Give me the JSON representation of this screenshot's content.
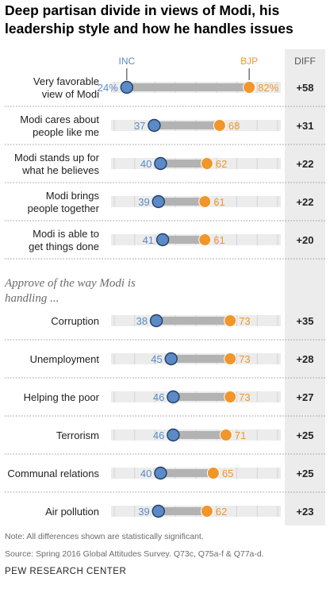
{
  "title": "Deep partisan divide in views of Modi, his leadership style and how he handles issues",
  "section_label": "Approve of the way Modi is handling ...",
  "diff_header": "DIFF",
  "note": "Note: All differences shown are statistically significant.",
  "source": "Source: Spring 2016 Global Attitudes Survey. Q73c, Q75a-f & Q77a-d.",
  "organization": "PEW RESEARCH CENTER",
  "colors": {
    "inc": "#5b8ac6",
    "bjp": "#f0962a",
    "bar": "#b3b3b3",
    "diff_bg": "#ececec",
    "track": "#ececec"
  },
  "chart_data": {
    "type": "dot-plot",
    "title": "Deep partisan divide in views of Modi, his leadership style and how he handles issues",
    "xlim": [
      0,
      100
    ],
    "legend": [
      "INC",
      "BJP"
    ],
    "series": [
      {
        "name": "INC",
        "values": [
          24,
          37,
          40,
          39,
          41,
          38,
          45,
          46,
          46,
          40,
          39
        ]
      },
      {
        "name": "BJP",
        "values": [
          82,
          68,
          62,
          61,
          61,
          73,
          73,
          73,
          71,
          65,
          62
        ]
      }
    ],
    "rows": [
      {
        "label": [
          "Very favorable",
          "view of Modi"
        ],
        "inc": 24,
        "bjp": 82,
        "inc_label": "24%",
        "bjp_label": "82%",
        "diff": "+58"
      },
      {
        "label": [
          "Modi cares about",
          "people like me"
        ],
        "inc": 37,
        "bjp": 68,
        "inc_label": "37",
        "bjp_label": "68",
        "diff": "+31"
      },
      {
        "label": [
          "Modi stands up for",
          "what he believes"
        ],
        "inc": 40,
        "bjp": 62,
        "inc_label": "40",
        "bjp_label": "62",
        "diff": "+22"
      },
      {
        "label": [
          "Modi brings",
          "people together"
        ],
        "inc": 39,
        "bjp": 61,
        "inc_label": "39",
        "bjp_label": "61",
        "diff": "+22"
      },
      {
        "label": [
          "Modi is able to",
          "get things done"
        ],
        "inc": 41,
        "bjp": 61,
        "inc_label": "41",
        "bjp_label": "61",
        "diff": "+20"
      },
      {
        "label": [
          "Corruption"
        ],
        "inc": 38,
        "bjp": 73,
        "inc_label": "38",
        "bjp_label": "73",
        "diff": "+35"
      },
      {
        "label": [
          "Unemployment"
        ],
        "inc": 45,
        "bjp": 73,
        "inc_label": "45",
        "bjp_label": "73",
        "diff": "+28"
      },
      {
        "label": [
          "Helping the poor"
        ],
        "inc": 46,
        "bjp": 73,
        "inc_label": "46",
        "bjp_label": "73",
        "diff": "+27"
      },
      {
        "label": [
          "Terrorism"
        ],
        "inc": 46,
        "bjp": 71,
        "inc_label": "46",
        "bjp_label": "71",
        "diff": "+25"
      },
      {
        "label": [
          "Communal relations"
        ],
        "inc": 40,
        "bjp": 65,
        "inc_label": "40",
        "bjp_label": "65",
        "diff": "+25"
      },
      {
        "label": [
          "Air pollution"
        ],
        "inc": 39,
        "bjp": 62,
        "inc_label": "39",
        "bjp_label": "62",
        "diff": "+23"
      }
    ]
  }
}
